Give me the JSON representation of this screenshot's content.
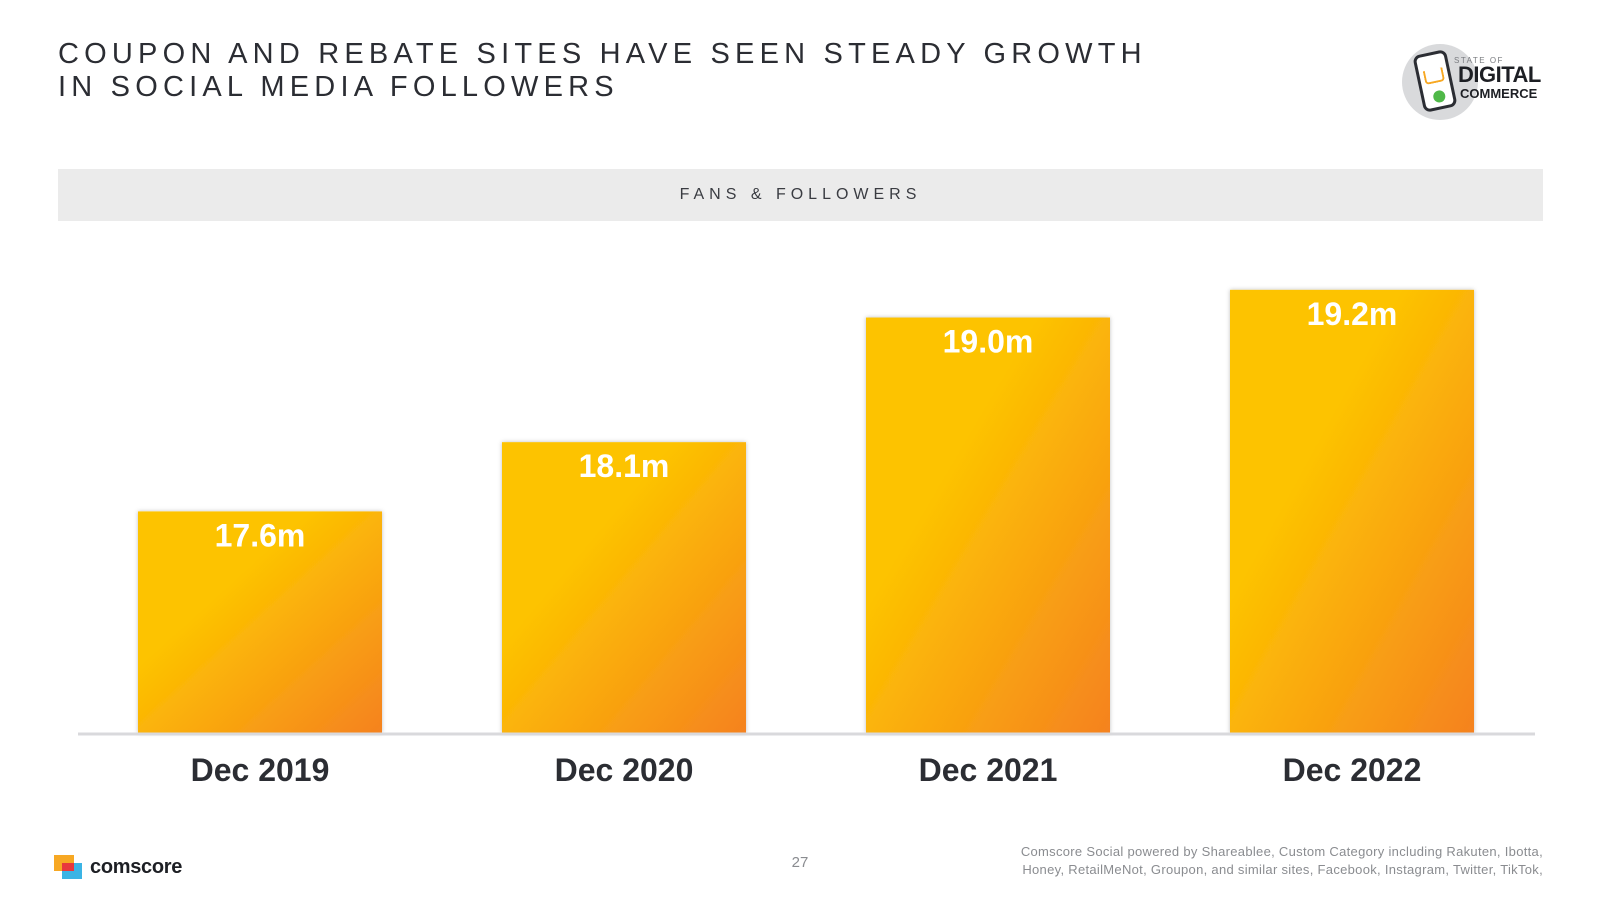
{
  "slide": {
    "title_line1": "COUPON AND REBATE SITES HAVE SEEN STEADY GROWTH",
    "title_line2": "IN SOCIAL MEDIA FOLLOWERS",
    "page_number": "27",
    "source_line1": "Comscore Social powered by Shareablee, Custom Category including Rakuten, Ibotta,",
    "source_line2": "Honey, RetailMeNot, Groupon, and similar sites, Facebook, Instagram, Twitter, TikTok,"
  },
  "logo": {
    "small": "STATE OF",
    "big": "DIGITAL",
    "mid": "COMMERCE"
  },
  "footer": {
    "brand": "comscore"
  },
  "colors": {
    "bar_top": "#fdc300",
    "bar_bottom": "#f58220",
    "axis": "#d9d9dc",
    "header_band": "#ebebeb"
  },
  "chart_data": {
    "type": "bar",
    "title": "FANS & FOLLOWERS",
    "categories": [
      "Dec 2019",
      "Dec 2020",
      "Dec 2021",
      "Dec 2022"
    ],
    "values": [
      17.6,
      18.1,
      19.0,
      19.2
    ],
    "value_labels": [
      "17.6m",
      "18.1m",
      "19.0m",
      "19.2m"
    ],
    "unit": "m",
    "ylim": [
      16.0,
      19.3
    ],
    "grid": false,
    "legend": "none",
    "xlabel": "",
    "ylabel": ""
  }
}
